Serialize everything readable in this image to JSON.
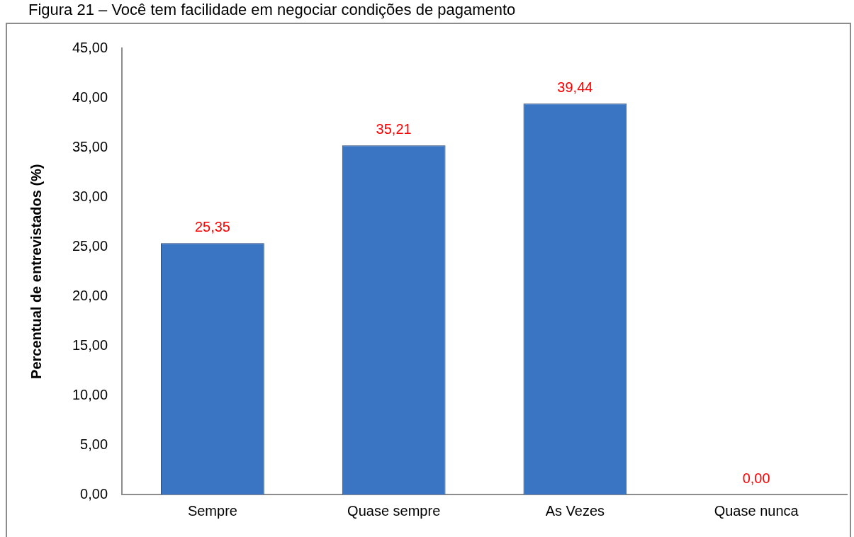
{
  "chart_data": {
    "type": "bar",
    "title": "Figura 21 – Você tem facilidade em negociar condições de pagamento",
    "ylabel": "Percentual de entrevistados (%)",
    "categories": [
      "Sempre",
      "Quase sempre",
      "As Vezes",
      "Quase nunca"
    ],
    "values": [
      25.35,
      35.21,
      39.44,
      0
    ],
    "value_labels": [
      "25,35",
      "35,21",
      "39,44",
      "0,00"
    ],
    "color": "#3a75c4",
    "ylim": [
      0,
      45
    ],
    "yticks": [
      {
        "value": 0,
        "label": "0,00"
      },
      {
        "value": 5,
        "label": "5,00"
      },
      {
        "value": 10,
        "label": "10,00"
      },
      {
        "value": 15,
        "label": "15,00"
      },
      {
        "value": 20,
        "label": "20,00"
      },
      {
        "value": 25,
        "label": "25,00"
      },
      {
        "value": 30,
        "label": "30,00"
      },
      {
        "value": 35,
        "label": "35,00"
      },
      {
        "value": 40,
        "label": "40,00"
      },
      {
        "value": 45,
        "label": "45,00"
      }
    ],
    "grid": false,
    "legend": false
  }
}
